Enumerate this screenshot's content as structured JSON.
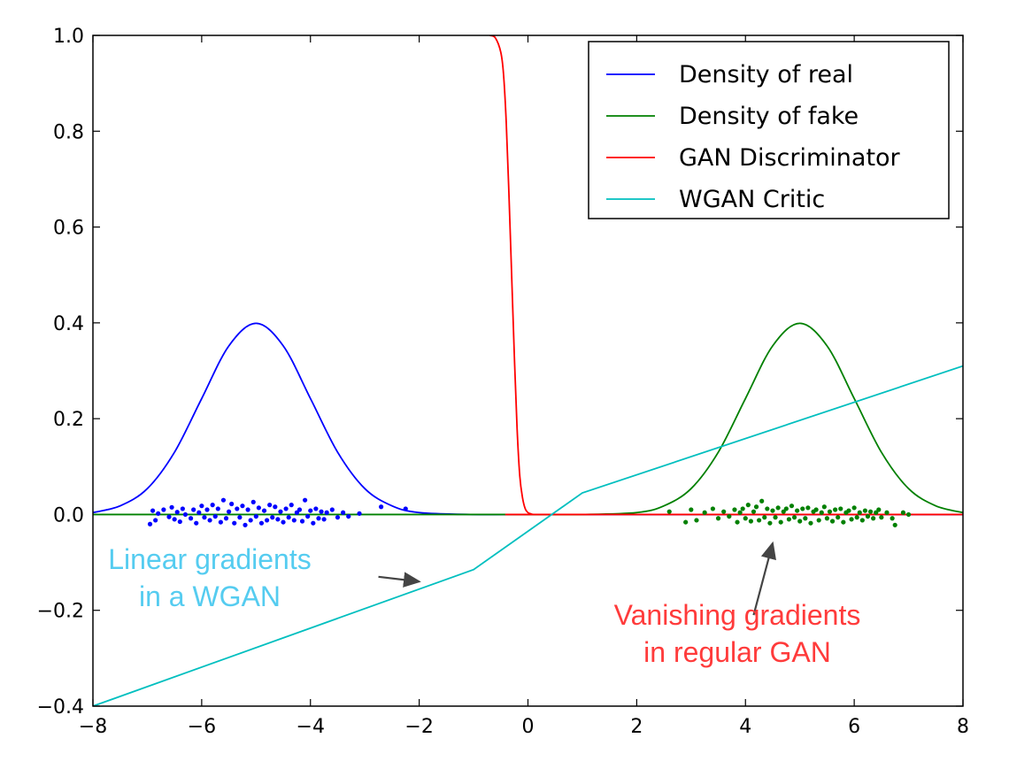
{
  "chart_data": {
    "type": "line",
    "title": "",
    "xlabel": "",
    "ylabel": "",
    "xlim": [
      -8,
      8
    ],
    "ylim": [
      -0.4,
      1.0
    ],
    "grid": false,
    "legend_position": "top-right",
    "x_ticks": [
      {
        "value": -8,
        "label": "−8"
      },
      {
        "value": -6,
        "label": "−6"
      },
      {
        "value": -4,
        "label": "−4"
      },
      {
        "value": -2,
        "label": "−2"
      },
      {
        "value": 0,
        "label": "0"
      },
      {
        "value": 2,
        "label": "2"
      },
      {
        "value": 4,
        "label": "4"
      },
      {
        "value": 6,
        "label": "6"
      },
      {
        "value": 8,
        "label": "8"
      }
    ],
    "y_ticks": [
      {
        "value": -0.4,
        "label": "−0.4"
      },
      {
        "value": -0.2,
        "label": "−0.2"
      },
      {
        "value": 0.0,
        "label": "0.0"
      },
      {
        "value": 0.2,
        "label": "0.2"
      },
      {
        "value": 0.4,
        "label": "0.4"
      },
      {
        "value": 0.6,
        "label": "0.6"
      },
      {
        "value": 0.8,
        "label": "0.8"
      },
      {
        "value": 1.0,
        "label": "1.0"
      }
    ],
    "series": [
      {
        "name": "Density of real",
        "color": "#0000ff",
        "x": [
          -8,
          -7.5,
          -7,
          -6.5,
          -6,
          -5.5,
          -5,
          -4.5,
          -4,
          -3.5,
          -3,
          -2.5,
          -2,
          -1,
          0,
          2,
          4,
          6,
          8
        ],
        "y": [
          0.004,
          0.018,
          0.054,
          0.13,
          0.242,
          0.352,
          0.399,
          0.352,
          0.242,
          0.13,
          0.054,
          0.018,
          0.004,
          0.0,
          0.0,
          0.0,
          0.0,
          0.0,
          0.0
        ]
      },
      {
        "name": "Density of fake",
        "color": "#008000",
        "x": [
          -8,
          -4,
          0,
          1,
          2,
          2.5,
          3,
          3.5,
          4,
          4.5,
          5,
          5.5,
          6,
          6.5,
          7,
          7.5,
          8
        ],
        "y": [
          0.0,
          0.0,
          0.0,
          0.0,
          0.004,
          0.018,
          0.054,
          0.13,
          0.242,
          0.352,
          0.399,
          0.352,
          0.242,
          0.13,
          0.054,
          0.018,
          0.004
        ]
      },
      {
        "name": "GAN Discriminator",
        "color": "#ff0000",
        "x": [
          -0.7,
          -0.6,
          -0.5,
          -0.45,
          -0.4,
          -0.35,
          -0.3,
          -0.25,
          -0.2,
          -0.15,
          -0.1,
          -0.05,
          0,
          0.05,
          0.1,
          0.2,
          8
        ],
        "y": [
          1.0,
          0.995,
          0.965,
          0.92,
          0.82,
          0.67,
          0.5,
          0.33,
          0.18,
          0.08,
          0.035,
          0.012,
          0.004,
          0.0015,
          0.0,
          0.0,
          0.0
        ]
      },
      {
        "name": "WGAN Critic",
        "color": "#00bfbf",
        "x": [
          -8,
          -1,
          1,
          8
        ],
        "y": [
          -0.4,
          -0.115,
          0.045,
          0.31
        ]
      }
    ],
    "scatter_series": [
      {
        "color": "#0000ff",
        "x": [
          -6.95,
          -6.9,
          -6.85,
          -6.8,
          -6.7,
          -6.6,
          -6.55,
          -6.5,
          -6.45,
          -6.4,
          -6.35,
          -6.3,
          -6.2,
          -6.15,
          -6.1,
          -6.05,
          -6.0,
          -5.95,
          -5.9,
          -5.85,
          -5.8,
          -5.75,
          -5.7,
          -5.65,
          -5.6,
          -5.55,
          -5.5,
          -5.45,
          -5.4,
          -5.35,
          -5.3,
          -5.25,
          -5.2,
          -5.15,
          -5.1,
          -5.05,
          -5.0,
          -4.95,
          -4.9,
          -4.85,
          -4.8,
          -4.75,
          -4.7,
          -4.65,
          -4.6,
          -4.55,
          -4.5,
          -4.45,
          -4.4,
          -4.35,
          -4.3,
          -4.25,
          -4.2,
          -4.15,
          -4.1,
          -4.05,
          -4.0,
          -3.95,
          -3.9,
          -3.85,
          -3.8,
          -3.75,
          -3.7,
          -3.6,
          -3.5,
          -3.4,
          -3.3,
          -3.1,
          -2.7,
          -2.25
        ],
        "y": [
          -0.02,
          0.008,
          -0.012,
          0.002,
          0.01,
          -0.005,
          0.015,
          -0.01,
          0.005,
          -0.015,
          0.012,
          0.0,
          -0.008,
          0.01,
          -0.018,
          0.004,
          0.018,
          -0.006,
          0.01,
          -0.012,
          0.02,
          -0.004,
          0.012,
          -0.016,
          0.03,
          -0.008,
          0.006,
          0.022,
          -0.018,
          0.012,
          -0.006,
          0.018,
          -0.022,
          0.01,
          -0.012,
          0.026,
          -0.004,
          0.014,
          -0.018,
          0.008,
          -0.012,
          0.02,
          -0.006,
          0.016,
          -0.01,
          0.006,
          -0.016,
          0.012,
          -0.006,
          0.02,
          -0.012,
          0.004,
          0.01,
          -0.014,
          0.03,
          -0.004,
          0.008,
          -0.018,
          0.012,
          -0.008,
          0.006,
          -0.01,
          0.004,
          0.01,
          -0.006,
          0.004,
          -0.004,
          0.002,
          0.016,
          0.012
        ]
      },
      {
        "color": "#008000",
        "x": [
          2.6,
          2.9,
          3.0,
          3.1,
          3.25,
          3.4,
          3.5,
          3.6,
          3.7,
          3.8,
          3.85,
          3.9,
          3.95,
          4.0,
          4.05,
          4.1,
          4.15,
          4.2,
          4.25,
          4.3,
          4.35,
          4.4,
          4.45,
          4.5,
          4.55,
          4.6,
          4.65,
          4.7,
          4.75,
          4.8,
          4.85,
          4.9,
          4.95,
          5.0,
          5.05,
          5.1,
          5.15,
          5.2,
          5.25,
          5.3,
          5.35,
          5.4,
          5.45,
          5.5,
          5.55,
          5.6,
          5.65,
          5.7,
          5.75,
          5.8,
          5.85,
          5.9,
          5.95,
          6.0,
          6.05,
          6.1,
          6.15,
          6.2,
          6.25,
          6.3,
          6.35,
          6.4,
          6.45,
          6.5,
          6.6,
          6.7,
          6.75,
          6.9,
          7.0
        ],
        "y": [
          0.006,
          -0.016,
          0.01,
          -0.012,
          0.004,
          0.012,
          -0.008,
          0.006,
          -0.004,
          0.01,
          -0.016,
          0.004,
          0.012,
          -0.008,
          0.02,
          -0.014,
          0.006,
          0.016,
          -0.012,
          0.028,
          -0.006,
          0.012,
          -0.018,
          0.008,
          -0.006,
          0.014,
          -0.016,
          0.006,
          0.012,
          -0.01,
          0.018,
          -0.006,
          0.008,
          -0.014,
          0.012,
          -0.008,
          0.014,
          -0.018,
          0.006,
          0.01,
          -0.012,
          0.004,
          0.016,
          -0.008,
          0.006,
          -0.014,
          0.01,
          -0.006,
          0.012,
          -0.016,
          0.004,
          0.008,
          -0.01,
          0.014,
          -0.006,
          0.004,
          -0.012,
          0.008,
          -0.004,
          0.006,
          -0.008,
          0.004,
          0.01,
          -0.006,
          0.004,
          -0.008,
          -0.022,
          0.004,
          0.0
        ]
      }
    ],
    "annotations": [
      {
        "lines": [
          "Linear gradients",
          "in a WGAN"
        ],
        "color": "#55ccf0",
        "arrow_from": [
          -2.75,
          -0.13
        ],
        "arrow_to": [
          -2.0,
          -0.14
        ]
      },
      {
        "lines": [
          "Vanishing gradients",
          "in regular GAN"
        ],
        "color": "#ff3b3b",
        "arrow_from": [
          4.15,
          -0.21
        ],
        "arrow_to": [
          4.5,
          -0.06
        ]
      }
    ]
  }
}
